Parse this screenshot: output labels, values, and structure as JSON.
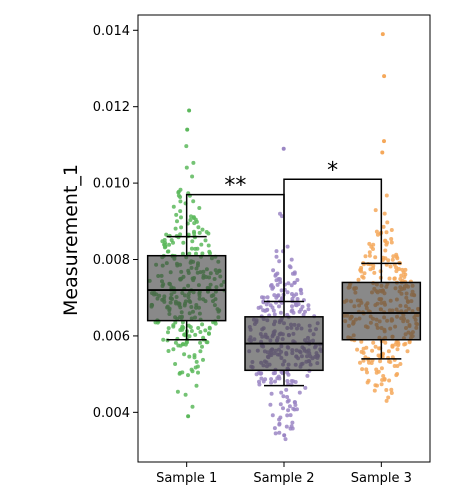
{
  "chart_data": {
    "type": "box-swarm",
    "ylabel": "Measurement_1",
    "ylim": [
      0.0027,
      0.0144
    ],
    "yticks": [
      0.004,
      0.006,
      0.008,
      0.01,
      0.012,
      0.014
    ],
    "ytick_labels": [
      "0.004",
      "0.006",
      "0.008",
      "0.010",
      "0.012",
      "0.014"
    ],
    "categories": [
      "Sample 1",
      "Sample 2",
      "Sample 3"
    ],
    "colors": [
      "#5cb85c",
      "#9b86c4",
      "#f5a85a"
    ],
    "box_fill": "#3a3a3a",
    "series": [
      {
        "name": "Sample 1",
        "whislo": 0.0059,
        "q1": 0.0064,
        "med": 0.0072,
        "q3": 0.0081,
        "whishi": 0.0086,
        "point_range": [
          0.0039,
          0.0119
        ],
        "outliers": [
          0.0114,
          0.0119,
          0.0039
        ]
      },
      {
        "name": "Sample 2",
        "whislo": 0.0047,
        "q1": 0.0051,
        "med": 0.0058,
        "q3": 0.0065,
        "whishi": 0.0069,
        "point_range": [
          0.0033,
          0.0109
        ],
        "outliers": [
          0.0109,
          0.0034
        ]
      },
      {
        "name": "Sample 3",
        "whislo": 0.0054,
        "q1": 0.0059,
        "med": 0.0066,
        "q3": 0.0074,
        "whishi": 0.0079,
        "point_range": [
          0.0043,
          0.0139
        ],
        "outliers": [
          0.0139,
          0.0128,
          0.0111,
          0.0108
        ]
      }
    ],
    "significance": [
      {
        "from": 0,
        "to": 1,
        "label": "**",
        "y": 0.0097
      },
      {
        "from": 1,
        "to": 2,
        "label": "*",
        "y": 0.0101
      }
    ]
  }
}
